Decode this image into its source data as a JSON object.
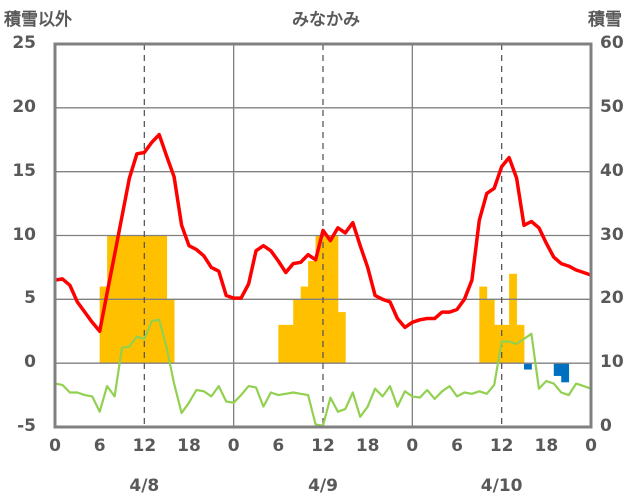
{
  "chart_data": {
    "type": "line",
    "title": "みなかみ",
    "ylabel_left": "積雪以外",
    "ylabel_right": "積雪",
    "ylim_left": [
      -5,
      25
    ],
    "ylim_right": [
      0,
      60
    ],
    "y_ticks_left": [
      "25",
      "20",
      "15",
      "10",
      "5",
      "0",
      "-5"
    ],
    "y_ticks_right": [
      "60",
      "50",
      "40",
      "30",
      "20",
      "10",
      "0"
    ],
    "x_ticks": [
      "0",
      "6",
      "12",
      "18",
      "0",
      "6",
      "12",
      "18",
      "0",
      "6",
      "12",
      "18",
      "0"
    ],
    "day_labels": [
      "4/8",
      "4/9",
      "4/10"
    ],
    "grid": true,
    "colors": {
      "temperature": "#ff0000",
      "green": "#92d050",
      "snowfall": "#ffc000",
      "blue": "#0070c0",
      "purple": "#7030a0",
      "frame": "#808080",
      "grid_dash": "#595959"
    },
    "series": [
      {
        "key": "temperature",
        "x": [
          0,
          1,
          2,
          3,
          4,
          5,
          6,
          7,
          8,
          9,
          10,
          11,
          12,
          13,
          14,
          15,
          16,
          17,
          18,
          19,
          20,
          21,
          22,
          23,
          24,
          25,
          26,
          27,
          28,
          29,
          30,
          31,
          32,
          33,
          34,
          35,
          36,
          37,
          38,
          39,
          40,
          41,
          42,
          43,
          44,
          45,
          46,
          47,
          48,
          49,
          50,
          51,
          52,
          53,
          54,
          55,
          56,
          57,
          58,
          59,
          60,
          61,
          62,
          63,
          64,
          65,
          66,
          67,
          68,
          69,
          70,
          71,
          72
        ],
        "values": [
          6.5,
          6.6,
          6.1,
          4.8,
          4.0,
          3.2,
          2.5,
          5.5,
          8.5,
          11.5,
          14.5,
          16.4,
          16.5,
          17.3,
          17.9,
          16.2,
          14.6,
          10.8,
          9.2,
          8.9,
          8.4,
          7.5,
          7.2,
          5.3,
          5.1,
          5.1,
          6.2,
          8.8,
          9.2,
          8.8,
          8.0,
          7.1,
          7.8,
          7.9,
          8.5,
          8.1,
          10.4,
          9.6,
          10.6,
          10.2,
          11.0,
          9.2,
          7.5,
          5.3,
          5.0,
          4.8,
          3.5,
          2.8,
          3.2,
          3.4,
          3.5,
          3.5,
          4.0,
          4.0,
          4.2,
          5.0,
          6.5,
          11.2,
          13.3,
          13.7,
          15.4,
          16.1,
          14.5,
          10.8,
          11.1,
          10.6,
          9.4,
          8.3,
          7.8,
          7.6,
          7.3,
          7.1,
          6.9
        ]
      },
      {
        "key": "green",
        "x": [
          0,
          1,
          2,
          3,
          4,
          5,
          6,
          7,
          8,
          9,
          10,
          11,
          12,
          13,
          14,
          15,
          16,
          17,
          18,
          19,
          20,
          21,
          22,
          23,
          24,
          25,
          26,
          27,
          28,
          29,
          30,
          31,
          32,
          33,
          34,
          35,
          36,
          37,
          38,
          39,
          40,
          41,
          42,
          43,
          44,
          45,
          46,
          47,
          48,
          49,
          50,
          51,
          52,
          53,
          54,
          55,
          56,
          57,
          58,
          59,
          60,
          61,
          62,
          63,
          64,
          65,
          66,
          67,
          68,
          69,
          70,
          71,
          72
        ],
        "values": [
          -1.6,
          -1.7,
          -2.3,
          -2.3,
          -2.5,
          -2.6,
          -3.8,
          -1.8,
          -2.6,
          1.2,
          1.3,
          2.1,
          1.9,
          3.3,
          3.4,
          1.2,
          -1.6,
          -3.9,
          -3.1,
          -2.1,
          -2.2,
          -2.6,
          -1.8,
          -3.0,
          -3.1,
          -2.5,
          -1.8,
          -1.9,
          -3.4,
          -2.3,
          -2.5,
          -2.4,
          -2.3,
          -2.4,
          -2.5,
          -4.8,
          -4.9,
          -2.7,
          -3.8,
          -3.6,
          -2.3,
          -4.2,
          -3.4,
          -2.0,
          -2.6,
          -1.8,
          -3.4,
          -2.2,
          -2.6,
          -2.7,
          -2.1,
          -2.8,
          -2.2,
          -1.8,
          -2.6,
          -2.3,
          -2.4,
          -2.2,
          -2.4,
          -1.7,
          1.7,
          1.7,
          1.5,
          1.9,
          2.3,
          -2.0,
          -1.4,
          -1.6,
          -2.3,
          -2.5,
          -1.6,
          -1.8,
          -2.0
        ]
      },
      {
        "key": "purple",
        "x": [
          0,
          72
        ],
        "values": [
          -5,
          -5
        ]
      }
    ],
    "bars": [
      {
        "key": "snowfall",
        "hours": [
          6,
          7,
          8,
          9,
          10,
          11,
          12,
          13,
          14,
          15,
          30,
          31,
          32,
          33,
          34,
          35,
          36,
          37,
          38,
          57,
          58,
          59,
          60,
          61,
          62
        ],
        "values": [
          6,
          10,
          10,
          10,
          10,
          10,
          10,
          10,
          10,
          5,
          3,
          3,
          5,
          6,
          8,
          10,
          10,
          10,
          4,
          6,
          5,
          3,
          3,
          7,
          3
        ]
      },
      {
        "key": "blue",
        "hours": [
          63,
          67,
          68
        ],
        "values": [
          -0.5,
          -1.0,
          -1.5
        ]
      }
    ]
  }
}
